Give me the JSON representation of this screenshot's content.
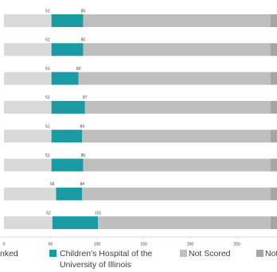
{
  "chart_data": {
    "type": "range-bar",
    "xlim": [
      0,
      293
    ],
    "xticks": [
      0,
      50,
      100,
      150,
      200,
      250
    ],
    "series": [
      {
        "name": "nked",
        "color": "#d9d9d9",
        "values": [
          51,
          51,
          51,
          51,
          51,
          51,
          56,
          52
        ]
      },
      {
        "name": "Children's Hospital of the University of Illinois",
        "color": "#1a9ba4",
        "values": [
          85,
          85,
          80,
          87,
          84,
          85,
          84,
          101
        ]
      },
      {
        "name": "Not Scored",
        "color": "#bfbfbf",
        "values": [
          286,
          286,
          286,
          286,
          286,
          286,
          286,
          286
        ]
      },
      {
        "name": "Not",
        "color": "#a6a6a6",
        "values": [
          300,
          300,
          300,
          300,
          300,
          300,
          300,
          300
        ]
      }
    ]
  }
}
